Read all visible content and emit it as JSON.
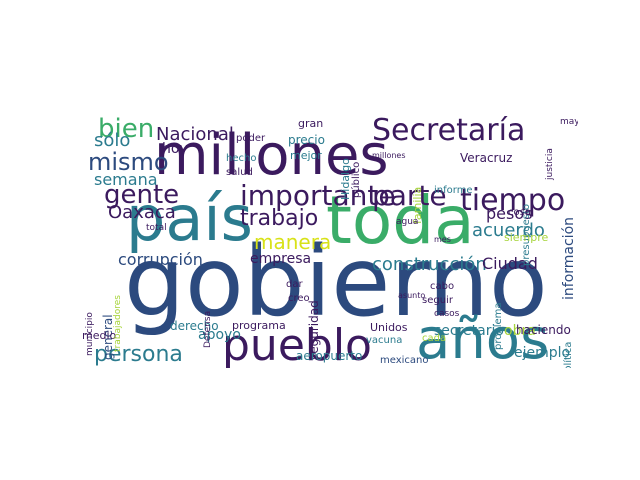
{
  "palette": {
    "dark": "#3b1a5e",
    "navy": "#2c4a7e",
    "teal": "#2b7b8e",
    "green": "#3aac68",
    "lime": "#a7d43b",
    "yellow": "#d8e219",
    "purple": "#482475"
  },
  "words": [
    {
      "text": "gobierno",
      "c": "navy"
    },
    {
      "text": "millones",
      "c": "dark"
    },
    {
      "text": "país",
      "c": "teal"
    },
    {
      "text": "toda",
      "c": "green"
    },
    {
      "text": "pueblo",
      "c": "dark"
    },
    {
      "text": "años",
      "c": "teal"
    },
    {
      "text": "Secretaría",
      "c": "dark"
    },
    {
      "text": "importante",
      "c": "dark"
    },
    {
      "text": "parte",
      "c": "dark"
    },
    {
      "text": "tiempo",
      "c": "dark"
    },
    {
      "text": "gente",
      "c": "dark"
    },
    {
      "text": "mismo",
      "c": "navy"
    },
    {
      "text": "bien",
      "c": "green"
    },
    {
      "text": "trabajo",
      "c": "dark"
    },
    {
      "text": "manera",
      "c": "yellow"
    },
    {
      "text": "Nacional",
      "c": "dark"
    },
    {
      "text": "persona",
      "c": "teal"
    },
    {
      "text": "construcción",
      "c": "teal"
    },
    {
      "text": "corrupción",
      "c": "navy"
    },
    {
      "text": "acuerdo",
      "c": "teal"
    },
    {
      "text": "Oaxaca",
      "c": "dark"
    },
    {
      "text": "semana",
      "c": "teal"
    },
    {
      "text": "sólo",
      "c": "teal"
    },
    {
      "text": "hoy",
      "c": "dark"
    },
    {
      "text": "pesos",
      "c": "dark"
    },
    {
      "text": "Ciudad",
      "c": "dark"
    },
    {
      "text": "empresa",
      "c": "dark"
    },
    {
      "text": "apoyo",
      "c": "teal"
    },
    {
      "text": "obra",
      "c": "lime"
    },
    {
      "text": "secretario",
      "c": "teal"
    },
    {
      "text": "ejemplo",
      "c": "teal"
    },
    {
      "text": "haciendo",
      "c": "dark"
    },
    {
      "text": "información",
      "c": "navy"
    },
    {
      "text": "general",
      "c": "navy"
    },
    {
      "text": "Veracruz",
      "c": "dark"
    },
    {
      "text": "seguridad",
      "c": "dark"
    },
    {
      "text": "programa",
      "c": "dark"
    },
    {
      "text": "derecho",
      "c": "teal"
    },
    {
      "text": "aeropuerto",
      "c": "teal"
    },
    {
      "text": "mexicano",
      "c": "navy"
    },
    {
      "text": "presupuesto",
      "c": "teal"
    },
    {
      "text": "siempre",
      "c": "lime"
    },
    {
      "text": "cosa",
      "c": "dark"
    },
    {
      "text": "público",
      "c": "dark"
    },
    {
      "text": "precio",
      "c": "teal"
    },
    {
      "text": "poder",
      "c": "dark"
    },
    {
      "text": "gran",
      "c": "dark"
    },
    {
      "text": "mejor",
      "c": "teal"
    },
    {
      "text": "hecho",
      "c": "teal"
    },
    {
      "text": "salud",
      "c": "dark"
    },
    {
      "text": "Hidalgo",
      "c": "teal"
    },
    {
      "text": "familia",
      "c": "lime"
    },
    {
      "text": "informe",
      "c": "teal"
    },
    {
      "text": "mayor",
      "c": "dark"
    },
    {
      "text": "justicia",
      "c": "dark"
    },
    {
      "text": "medio",
      "c": "dark"
    },
    {
      "text": "municipio",
      "c": "dark"
    },
    {
      "text": "política",
      "c": "teal"
    },
    {
      "text": "problema",
      "c": "teal"
    },
    {
      "text": "Unidos",
      "c": "dark"
    },
    {
      "text": "seguir",
      "c": "dark"
    },
    {
      "text": "cabo",
      "c": "dark"
    },
    {
      "text": "vacuna",
      "c": "teal"
    },
    {
      "text": "cada",
      "c": "lime"
    },
    {
      "text": "creo",
      "c": "dark"
    },
    {
      "text": "dar",
      "c": "dark"
    },
    {
      "text": "agua",
      "c": "dark"
    },
    {
      "text": "mes",
      "c": "dark"
    },
    {
      "text": "total",
      "c": "dark"
    },
    {
      "text": "Defensa",
      "c": "dark"
    },
    {
      "text": "casos",
      "c": "dark"
    },
    {
      "text": "asunto",
      "c": "dark"
    },
    {
      "text": "trabajadores",
      "c": "lime"
    },
    {
      "text": "millones",
      "c": "dark"
    }
  ]
}
